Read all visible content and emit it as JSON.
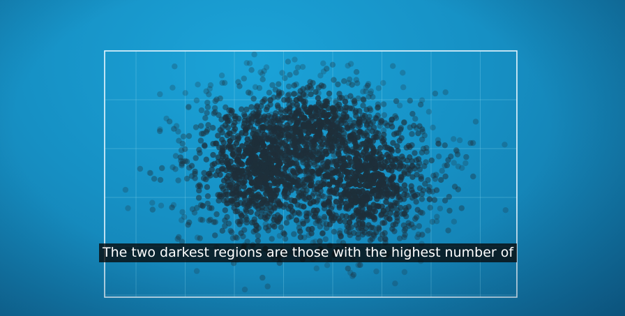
{
  "video": {
    "caption": "The two darkest regions are those with the highest number of"
  },
  "scatter": {
    "dot_color": "#1e2f3a",
    "grid_color": "#7fd0ec",
    "frame_color": "#e8f7ff",
    "background_color": "#1690c4",
    "grid_columns": 8,
    "grid_rows": 5
  }
}
